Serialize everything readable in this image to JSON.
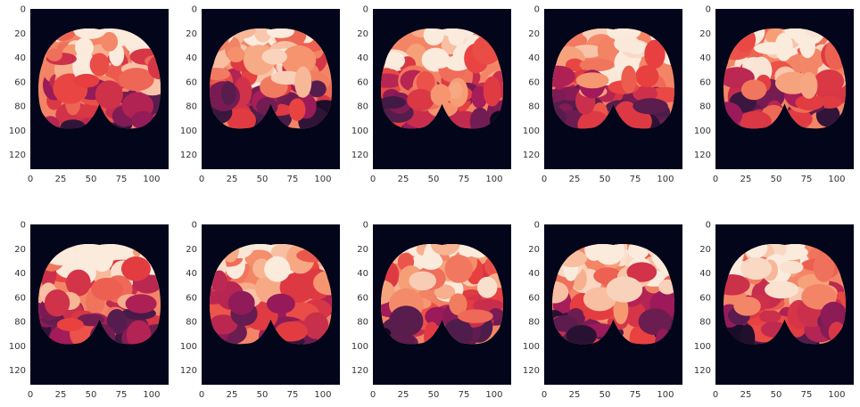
{
  "chart_data": {
    "type": "heatmap",
    "layout": {
      "rows": 2,
      "cols": 5
    },
    "image_shape": {
      "height": 132,
      "width": 114
    },
    "xticks": [
      0,
      25,
      50,
      75,
      100
    ],
    "yticks": [
      0,
      20,
      40,
      60,
      80,
      100,
      120
    ],
    "xlim": [
      0,
      114
    ],
    "ylim": [
      132,
      0
    ],
    "colormap": [
      "#03051a",
      "#4c1d4b",
      "#a11a5b",
      "#e83f3f",
      "#f69c73",
      "#faebdd"
    ],
    "background_color": "#03051a",
    "brain_mask": {
      "center_x": 57,
      "top_y": 15,
      "left_x": 7,
      "right_x": 107,
      "widest_y": 78,
      "bottom_y": 98,
      "notch_y": 78
    },
    "panels": [
      {
        "seed": 11
      },
      {
        "seed": 23
      },
      {
        "seed": 37
      },
      {
        "seed": 41
      },
      {
        "seed": 53
      },
      {
        "seed": 67
      },
      {
        "seed": 71
      },
      {
        "seed": 83
      },
      {
        "seed": 97
      },
      {
        "seed": 101
      }
    ]
  }
}
